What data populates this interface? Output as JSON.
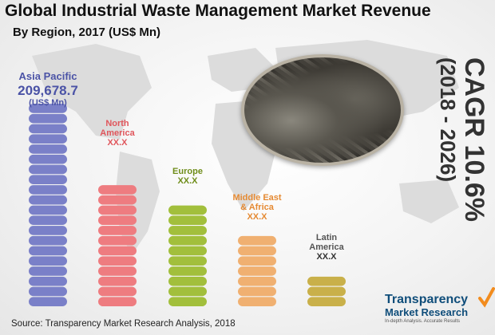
{
  "title": "Global Industrial Waste Management Market Revenue",
  "subtitle": "By Region, 2017 (US$ Mn)",
  "cagr": {
    "label": "CAGR 10.6%",
    "period": "(2018 - 2026)"
  },
  "source": "Source: Transparency Market Research Analysis, 2018",
  "brand": {
    "line1": "Transparency",
    "line2": "Market Research",
    "tagline": "In-depth Analysis. Accurate Results"
  },
  "chart_data": {
    "type": "bar",
    "categories": [
      "Asia Pacific",
      "North America",
      "Europe",
      "Middle East & Africa",
      "Latin America"
    ],
    "value_labels": [
      "209,678.7",
      "XX.X",
      "XX.X",
      "XX.X",
      "XX.X"
    ],
    "unit_label": "(US$ Mn)",
    "relative_heights": [
      1.0,
      0.62,
      0.5,
      0.34,
      0.17
    ],
    "colors": [
      "#7a80c8",
      "#ee7c80",
      "#a2bf3c",
      "#f0b071",
      "#c9b04a"
    ],
    "grid": false
  }
}
